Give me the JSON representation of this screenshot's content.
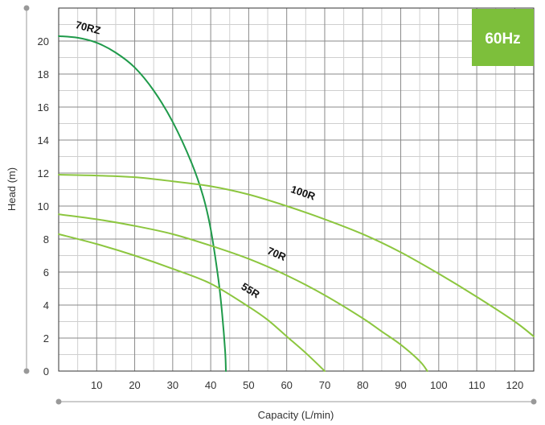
{
  "badge": {
    "text": "60Hz",
    "color": "#7dbf3b"
  },
  "chart_data": {
    "type": "line",
    "title": "",
    "xlabel": "Capacity (L/min)",
    "ylabel": "Head (m)",
    "xlim": [
      0,
      125
    ],
    "ylim": [
      0,
      22
    ],
    "x_ticks": [
      10,
      20,
      30,
      40,
      50,
      60,
      70,
      80,
      90,
      100,
      110,
      120
    ],
    "y_ticks": [
      0,
      2,
      4,
      6,
      8,
      10,
      12,
      14,
      16,
      18,
      20
    ],
    "grid": true,
    "legend": "none",
    "series": [
      {
        "name": "70RZ",
        "color": "#1f9a4a",
        "x": [
          0,
          5,
          10,
          15,
          20,
          25,
          30,
          35,
          38,
          40,
          42,
          43,
          43.8,
          44
        ],
        "y": [
          20.3,
          20.2,
          19.9,
          19.3,
          18.4,
          17.0,
          15.1,
          12.6,
          10.6,
          8.6,
          5.6,
          3.5,
          1.2,
          0
        ],
        "label_at": [
          7.5,
          20.6
        ]
      },
      {
        "name": "100R",
        "color": "#8cc63f",
        "x": [
          0,
          10,
          20,
          30,
          40,
          50,
          60,
          70,
          80,
          90,
          100,
          110,
          120,
          125
        ],
        "y": [
          11.9,
          11.85,
          11.75,
          11.5,
          11.2,
          10.7,
          10.0,
          9.2,
          8.3,
          7.2,
          5.9,
          4.5,
          3.0,
          2.1
        ],
        "label_at": [
          64,
          10.6
        ]
      },
      {
        "name": "70R",
        "color": "#8cc63f",
        "x": [
          0,
          10,
          20,
          30,
          40,
          50,
          60,
          70,
          80,
          85,
          90,
          95,
          97
        ],
        "y": [
          9.5,
          9.2,
          8.8,
          8.3,
          7.6,
          6.8,
          5.8,
          4.6,
          3.2,
          2.4,
          1.6,
          0.6,
          0
        ],
        "label_at": [
          57,
          6.9
        ]
      },
      {
        "name": "55R",
        "color": "#8cc63f",
        "x": [
          0,
          10,
          20,
          30,
          40,
          50,
          55,
          60,
          65,
          70
        ],
        "y": [
          8.3,
          7.7,
          7.0,
          6.2,
          5.3,
          3.9,
          3.1,
          2.1,
          1.1,
          0
        ],
        "label_at": [
          50,
          4.7
        ]
      }
    ]
  }
}
